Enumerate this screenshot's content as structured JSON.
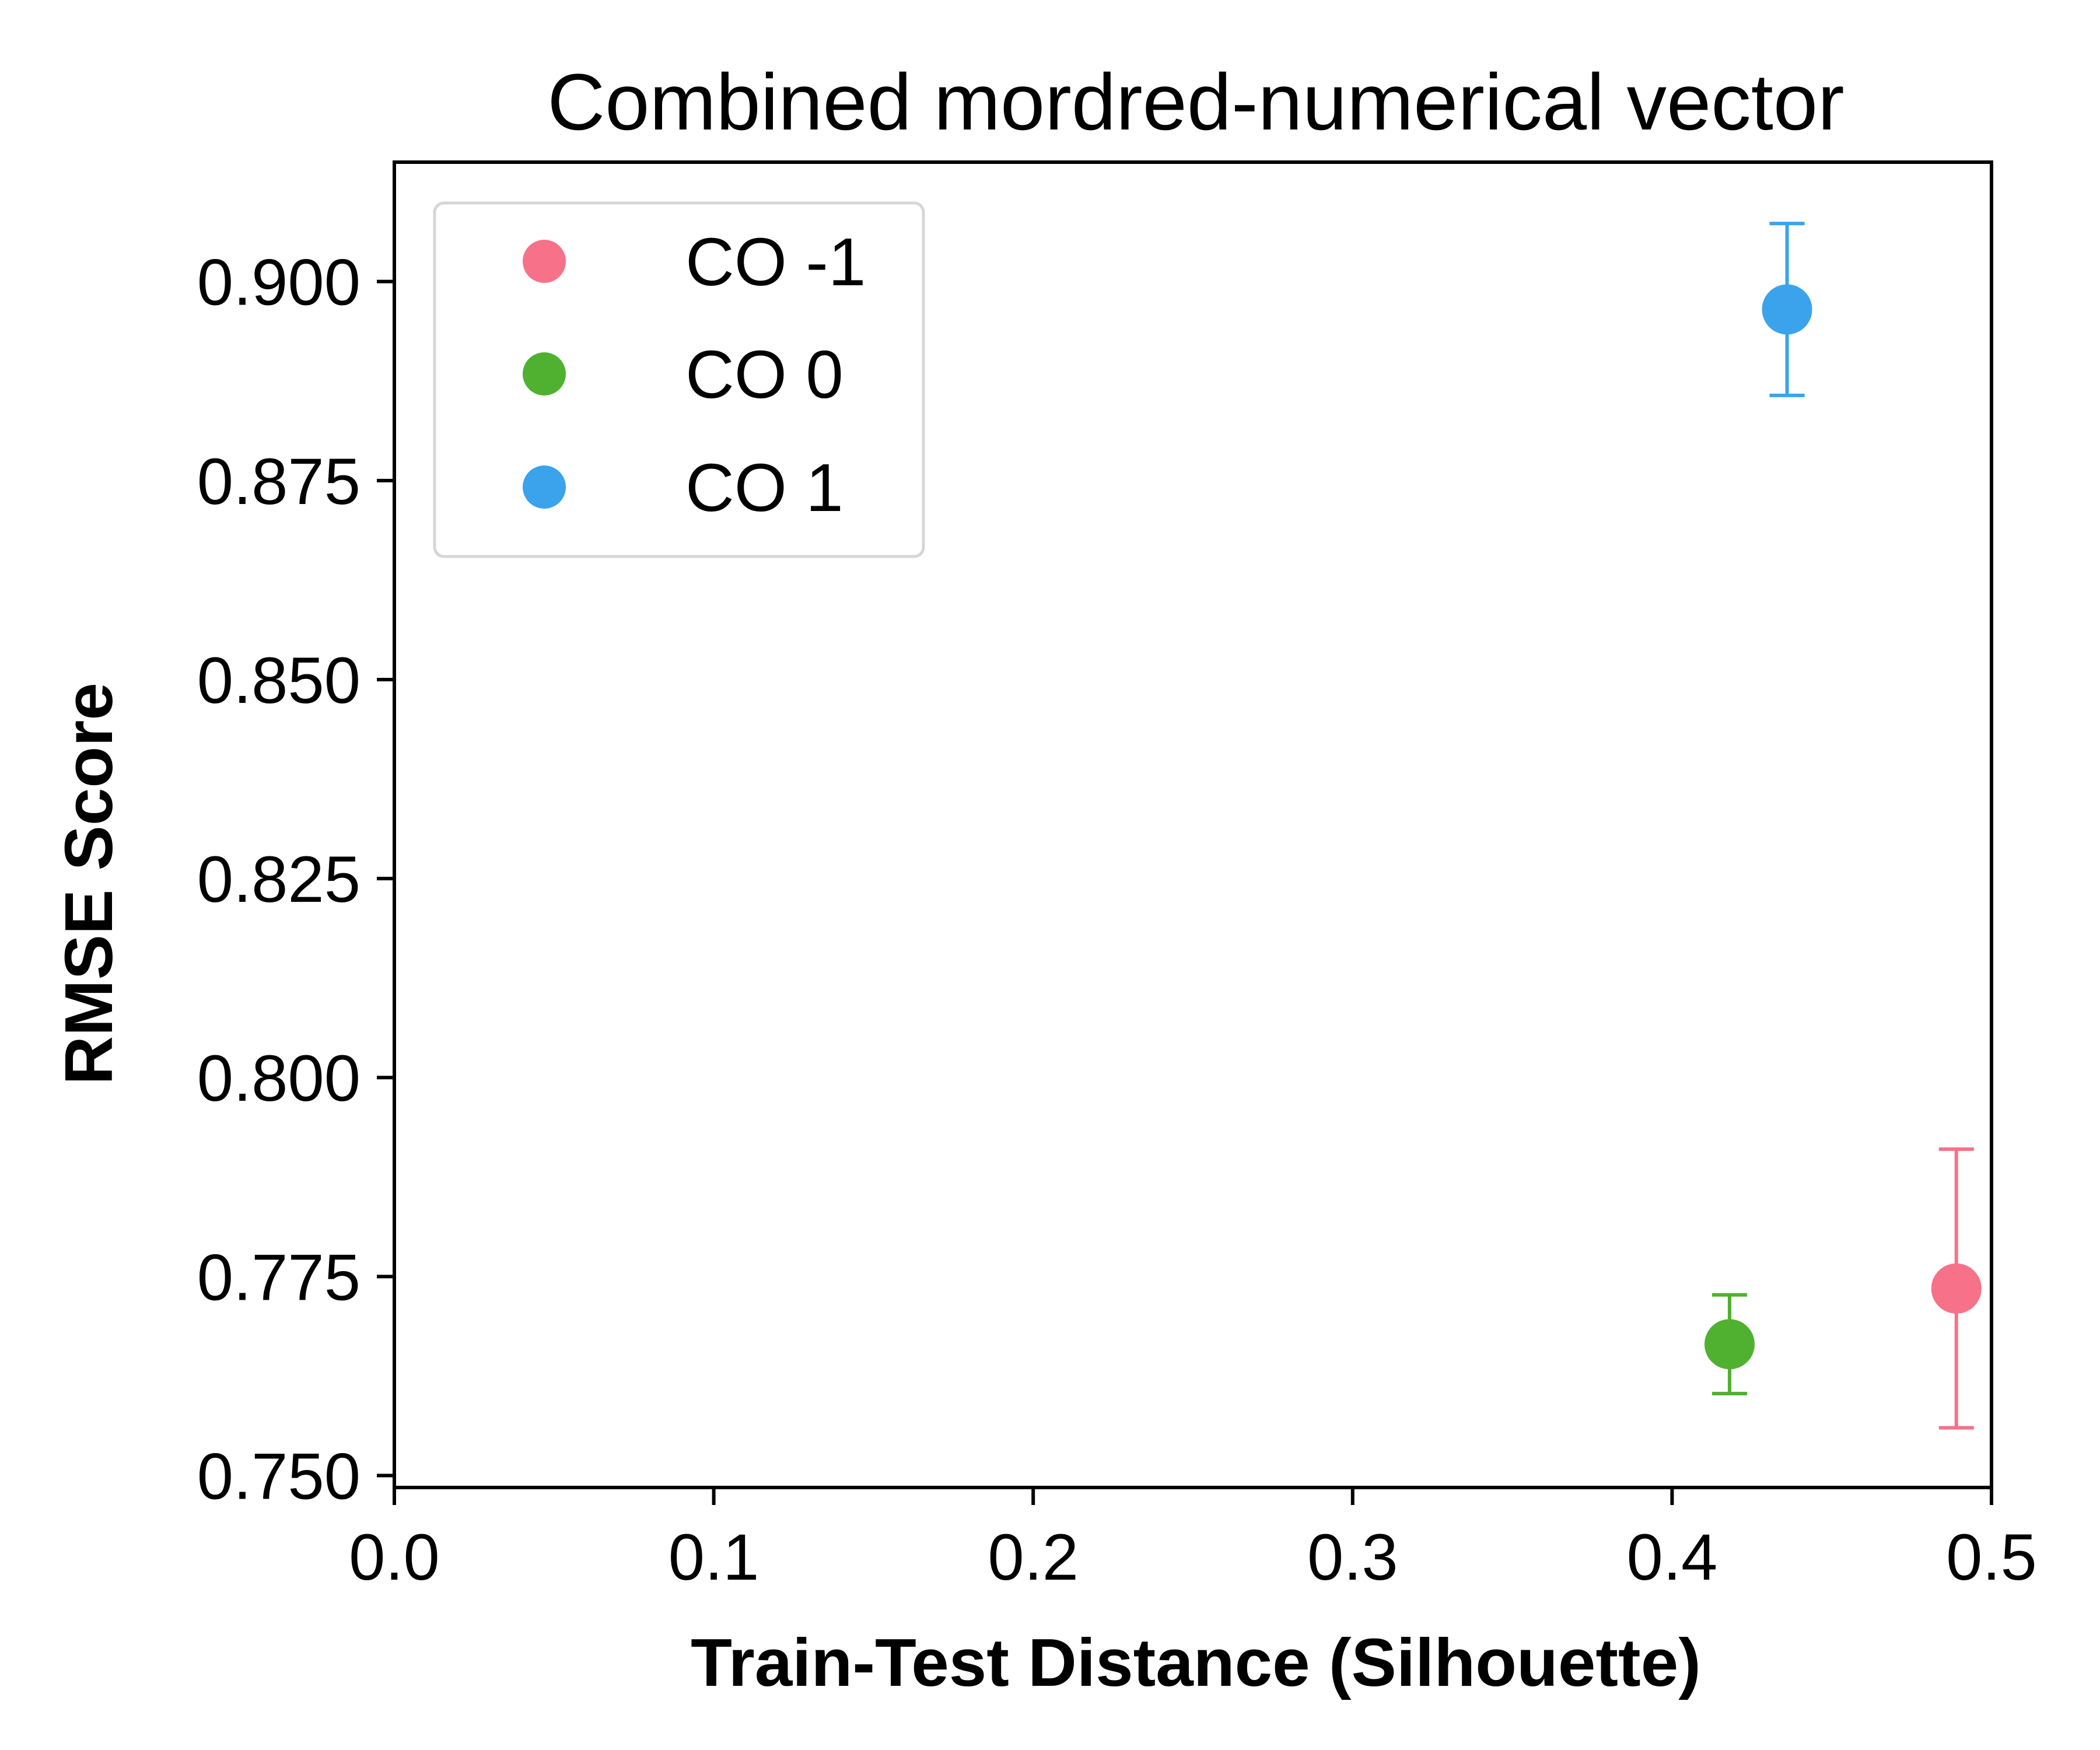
{
  "chart_data": {
    "type": "scatter",
    "title": "Combined mordred-numerical vector",
    "xlabel": "Train-Test Distance (Silhouette)",
    "ylabel": "RMSE Score",
    "xlim": [
      0.0,
      0.5
    ],
    "ylim": [
      0.7485,
      0.915
    ],
    "xticks": [
      0.0,
      0.1,
      0.2,
      0.3,
      0.4,
      0.5
    ],
    "xtick_labels": [
      "0.0",
      "0.1",
      "0.2",
      "0.3",
      "0.4",
      "0.5"
    ],
    "yticks": [
      0.75,
      0.775,
      0.8,
      0.825,
      0.85,
      0.875,
      0.9
    ],
    "ytick_labels": [
      "0.750",
      "0.775",
      "0.800",
      "0.825",
      "0.850",
      "0.875",
      "0.900"
    ],
    "grid": false,
    "legend_position": "top-left",
    "series": [
      {
        "name": "CO -1",
        "color": "#f77189",
        "points": [
          {
            "x": 0.489,
            "y": 0.7735,
            "err": 0.0175
          }
        ]
      },
      {
        "name": "CO 0",
        "color": "#50b131",
        "points": [
          {
            "x": 0.418,
            "y": 0.7665,
            "err": 0.0062
          }
        ]
      },
      {
        "name": "CO 1",
        "color": "#3ba3ec",
        "points": [
          {
            "x": 0.436,
            "y": 0.8965,
            "err": 0.0108
          }
        ]
      }
    ]
  }
}
